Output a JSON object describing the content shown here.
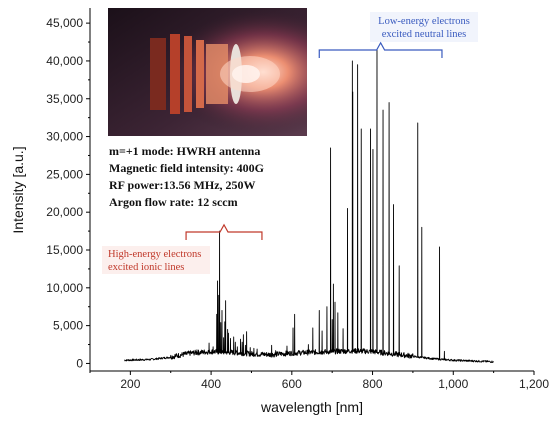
{
  "chart_data": {
    "type": "line",
    "xlabel": "wavelength [nm]",
    "ylabel": "Intensity [a.u.]",
    "xlim": [
      100,
      1200
    ],
    "ylim": [
      -1000,
      47000
    ],
    "x_ticks": [
      200,
      400,
      600,
      800,
      1000,
      1200
    ],
    "x_tick_labels": [
      "200",
      "400",
      "600",
      "800",
      "1,000",
      "1,200"
    ],
    "y_ticks": [
      0,
      5000,
      10000,
      15000,
      20000,
      25000,
      30000,
      35000,
      40000,
      45000
    ],
    "y_tick_labels": [
      "0",
      "5,000",
      "10,000",
      "15,000",
      "20,000",
      "25,000",
      "30,000",
      "35,000",
      "40,000",
      "45,000"
    ],
    "grid": false,
    "series": [
      {
        "color": "#000000",
        "baseline": [
          [
            185,
            400
          ],
          [
            250,
            500
          ],
          [
            300,
            800
          ],
          [
            350,
            1300
          ],
          [
            400,
            1500
          ],
          [
            450,
            1400
          ],
          [
            500,
            1200
          ],
          [
            550,
            1100
          ],
          [
            600,
            1300
          ],
          [
            650,
            1400
          ],
          [
            700,
            1500
          ],
          [
            750,
            1600
          ],
          [
            800,
            1500
          ],
          [
            850,
            1200
          ],
          [
            900,
            900
          ],
          [
            950,
            600
          ],
          [
            1000,
            400
          ],
          [
            1050,
            300
          ],
          [
            1100,
            200
          ]
        ],
        "peaks": [
          [
            310,
            800
          ],
          [
            340,
            1400
          ],
          [
            365,
            1800
          ],
          [
            380,
            1600
          ],
          [
            395,
            2700
          ],
          [
            405,
            2200
          ],
          [
            414,
            6500
          ],
          [
            416,
            10900
          ],
          [
            419,
            9000
          ],
          [
            421,
            17500
          ],
          [
            424,
            5400
          ],
          [
            427,
            7000
          ],
          [
            431,
            3400
          ],
          [
            434,
            5500
          ],
          [
            436,
            8300
          ],
          [
            441,
            4500
          ],
          [
            443,
            4000
          ],
          [
            448,
            3300
          ],
          [
            456,
            3500
          ],
          [
            460,
            2800
          ],
          [
            465,
            2200
          ],
          [
            473,
            3200
          ],
          [
            477,
            2800
          ],
          [
            480,
            3800
          ],
          [
            485,
            2400
          ],
          [
            488,
            4200
          ],
          [
            497,
            2100
          ],
          [
            506,
            2000
          ],
          [
            514,
            1900
          ],
          [
            550,
            2400
          ],
          [
            560,
            1700
          ],
          [
            588,
            2300
          ],
          [
            603,
            4700
          ],
          [
            607,
            6500
          ],
          [
            641,
            2500
          ],
          [
            652,
            4700
          ],
          [
            668,
            7000
          ],
          [
            675,
            4300
          ],
          [
            687,
            7500
          ],
          [
            696,
            28500
          ],
          [
            700,
            5800
          ],
          [
            703,
            10500
          ],
          [
            707,
            8100
          ],
          [
            714,
            6700
          ],
          [
            727,
            4600
          ],
          [
            738,
            20500
          ],
          [
            750,
            40000
          ],
          [
            751,
            35900
          ],
          [
            763,
            39500
          ],
          [
            772,
            31000
          ],
          [
            795,
            31000
          ],
          [
            801,
            28300
          ],
          [
            811,
            41500
          ],
          [
            826,
            33500
          ],
          [
            841,
            34500
          ],
          [
            852,
            21000
          ],
          [
            866,
            12900
          ],
          [
            912,
            31800
          ],
          [
            922,
            18000
          ],
          [
            966,
            15400
          ],
          [
            978,
            1600
          ]
        ],
        "noise_seed": 7
      }
    ],
    "annotations": [
      {
        "lines": [
          "Low-energy electrons",
          "excited neutral lines"
        ],
        "color": "#3a5bbf",
        "x_range": [
          668,
          972
        ]
      },
      {
        "lines": [
          "High-energy electrons",
          "excited ionic lines"
        ],
        "color": "#c0392b",
        "x_range": [
          338,
          526
        ]
      }
    ]
  },
  "info_box": {
    "lines": [
      "m=+1 mode: HWRH antenna",
      "Magnetic field intensity: 400G",
      "RF power:13.56 MHz, 250W",
      "Argon flow rate: 12 sccm"
    ]
  },
  "photo": {
    "colors": {
      "background": "#2a1a26",
      "glow": "#ff8a5c",
      "coil": "#b5402a",
      "rim": "#d9d2cc"
    }
  }
}
